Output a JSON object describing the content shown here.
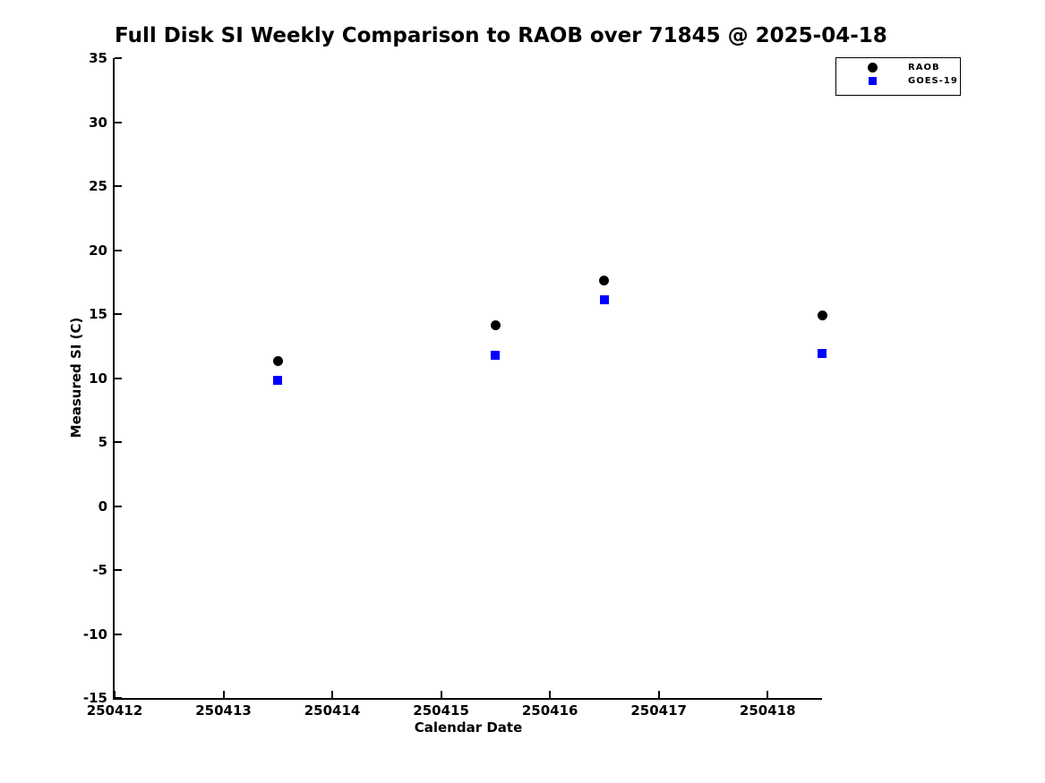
{
  "figure": {
    "background": "#ffffff"
  },
  "chart_data": {
    "type": "scatter",
    "title": "Full Disk SI Weekly Comparison to RAOB over 71845 @ 2025-04-18",
    "xlabel": "Calendar Date",
    "ylabel": "Measured SI (C)",
    "xlim": [
      250412,
      250418.5
    ],
    "ylim": [
      -15,
      35
    ],
    "xticks": [
      250412,
      250413,
      250414,
      250415,
      250416,
      250417,
      250418
    ],
    "yticks": [
      35,
      30,
      25,
      20,
      15,
      10,
      5,
      0,
      -5,
      -10,
      -15
    ],
    "grid": false,
    "legend": {
      "position": "top-right-outside",
      "entries": [
        "RAOB",
        "GOES-19"
      ]
    },
    "series": [
      {
        "name": "RAOB",
        "marker": "circle",
        "color": "#000000",
        "x": [
          250413.5,
          250415.5,
          250416.5,
          250418.5
        ],
        "y": [
          11.3,
          14.1,
          17.6,
          14.9
        ]
      },
      {
        "name": "GOES-19",
        "marker": "square",
        "color": "#0000ff",
        "x": [
          250413.5,
          250415.5,
          250416.5,
          250418.5
        ],
        "y": [
          9.8,
          11.8,
          16.1,
          11.9
        ]
      }
    ]
  }
}
